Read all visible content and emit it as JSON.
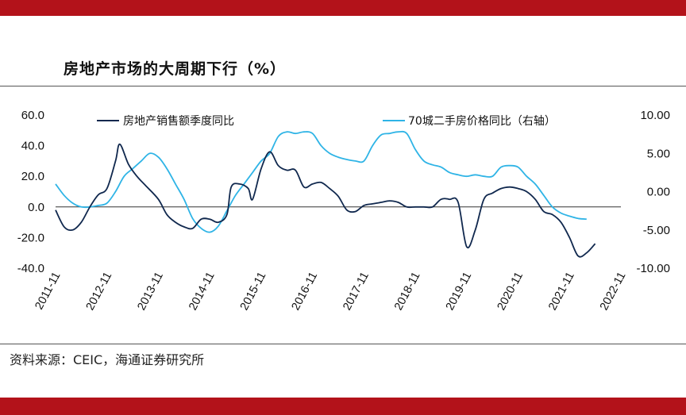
{
  "page": {
    "title": "房地产市场的大周期下行（%）",
    "source": "资料来源：CEIC，海通证券研究所"
  },
  "colors": {
    "band": "#b3121a",
    "series1": "#10284e",
    "series2": "#2fb4e6",
    "zero_line": "#333333"
  },
  "chart_data": {
    "type": "line",
    "title": "房地产市场的大周期下行（%）",
    "x_ticks": [
      "2011-11",
      "2012-11",
      "2013-11",
      "2014-11",
      "2015-11",
      "2016-11",
      "2017-11",
      "2018-11",
      "2019-11",
      "2020-11",
      "2021-11",
      "2022-11"
    ],
    "y_left": {
      "lim": [
        -40,
        60
      ],
      "ticks": [
        "60.0",
        "40.0",
        "20.0",
        "0.0",
        "-20.0",
        "-40.0"
      ]
    },
    "y_right": {
      "lim": [
        -10,
        10
      ],
      "ticks": [
        "10.00",
        "5.00",
        "0.00",
        "-5.00",
        "-10.00"
      ]
    },
    "series": [
      {
        "name": "房地产销售额季度同比",
        "axis": "left",
        "points": [
          [
            "2011-11",
            -2
          ],
          [
            "2012-01",
            -13
          ],
          [
            "2012-03",
            -15
          ],
          [
            "2012-05",
            -10
          ],
          [
            "2012-07",
            0
          ],
          [
            "2012-09",
            8
          ],
          [
            "2012-11",
            12
          ],
          [
            "2013-01",
            30
          ],
          [
            "2013-02",
            41
          ],
          [
            "2013-04",
            28
          ],
          [
            "2013-06",
            20
          ],
          [
            "2013-08",
            14
          ],
          [
            "2013-11",
            5
          ],
          [
            "2014-01",
            -5
          ],
          [
            "2014-03",
            -10
          ],
          [
            "2014-05",
            -13
          ],
          [
            "2014-07",
            -14
          ],
          [
            "2014-09",
            -8
          ],
          [
            "2014-11",
            -8
          ],
          [
            "2015-01",
            -10
          ],
          [
            "2015-03",
            -5
          ],
          [
            "2015-04",
            13
          ],
          [
            "2015-06",
            15
          ],
          [
            "2015-08",
            12
          ],
          [
            "2015-09",
            5
          ],
          [
            "2015-11",
            25
          ],
          [
            "2016-01",
            36
          ],
          [
            "2016-03",
            27
          ],
          [
            "2016-05",
            24
          ],
          [
            "2016-07",
            24
          ],
          [
            "2016-09",
            13
          ],
          [
            "2016-11",
            15
          ],
          [
            "2017-01",
            16
          ],
          [
            "2017-03",
            12
          ],
          [
            "2017-05",
            7
          ],
          [
            "2017-07",
            -2
          ],
          [
            "2017-09",
            -3
          ],
          [
            "2017-11",
            1
          ],
          [
            "2018-01",
            2
          ],
          [
            "2018-03",
            3
          ],
          [
            "2018-05",
            4
          ],
          [
            "2018-07",
            3
          ],
          [
            "2018-09",
            0
          ],
          [
            "2018-11",
            0
          ],
          [
            "2019-01",
            0
          ],
          [
            "2019-03",
            0
          ],
          [
            "2019-05",
            5
          ],
          [
            "2019-07",
            5
          ],
          [
            "2019-09",
            3
          ],
          [
            "2019-11",
            -26
          ],
          [
            "2020-01",
            -15
          ],
          [
            "2020-03",
            5
          ],
          [
            "2020-05",
            9
          ],
          [
            "2020-07",
            12
          ],
          [
            "2020-09",
            13
          ],
          [
            "2020-11",
            12
          ],
          [
            "2021-01",
            10
          ],
          [
            "2021-03",
            5
          ],
          [
            "2021-05",
            -3
          ],
          [
            "2021-07",
            -5
          ],
          [
            "2021-09",
            -10
          ],
          [
            "2021-11",
            -20
          ],
          [
            "2022-01",
            -32
          ],
          [
            "2022-03",
            -30
          ],
          [
            "2022-05",
            -24
          ]
        ]
      },
      {
        "name": "70城二手房价格同比（右轴）",
        "axis": "right",
        "points": [
          [
            "2011-11",
            1.0
          ],
          [
            "2012-01",
            -0.5
          ],
          [
            "2012-03",
            -1.5
          ],
          [
            "2012-05",
            -2.0
          ],
          [
            "2012-07",
            -2.0
          ],
          [
            "2012-09",
            -1.8
          ],
          [
            "2012-11",
            -1.5
          ],
          [
            "2013-01",
            0.0
          ],
          [
            "2013-03",
            2.0
          ],
          [
            "2013-05",
            3.0
          ],
          [
            "2013-07",
            4.0
          ],
          [
            "2013-09",
            5.0
          ],
          [
            "2013-11",
            4.5
          ],
          [
            "2014-01",
            3.0
          ],
          [
            "2014-03",
            1.0
          ],
          [
            "2014-05",
            -1.0
          ],
          [
            "2014-07",
            -3.5
          ],
          [
            "2014-09",
            -4.8
          ],
          [
            "2014-11",
            -5.3
          ],
          [
            "2015-01",
            -4.5
          ],
          [
            "2015-03",
            -2.5
          ],
          [
            "2015-05",
            -0.5
          ],
          [
            "2015-07",
            1.0
          ],
          [
            "2015-09",
            2.5
          ],
          [
            "2015-11",
            4.0
          ],
          [
            "2016-01",
            5.0
          ],
          [
            "2016-03",
            7.2
          ],
          [
            "2016-05",
            7.8
          ],
          [
            "2016-07",
            7.6
          ],
          [
            "2016-09",
            7.8
          ],
          [
            "2016-11",
            7.6
          ],
          [
            "2017-01",
            6.0
          ],
          [
            "2017-03",
            5.0
          ],
          [
            "2017-05",
            4.5
          ],
          [
            "2017-07",
            4.2
          ],
          [
            "2017-09",
            4.0
          ],
          [
            "2017-11",
            4.0
          ],
          [
            "2018-01",
            6.0
          ],
          [
            "2018-03",
            7.4
          ],
          [
            "2018-05",
            7.6
          ],
          [
            "2018-07",
            7.8
          ],
          [
            "2018-09",
            7.6
          ],
          [
            "2018-11",
            5.5
          ],
          [
            "2019-01",
            4.0
          ],
          [
            "2019-03",
            3.5
          ],
          [
            "2019-05",
            3.2
          ],
          [
            "2019-07",
            2.5
          ],
          [
            "2019-09",
            2.2
          ],
          [
            "2019-11",
            2.0
          ],
          [
            "2020-01",
            2.2
          ],
          [
            "2020-03",
            2.0
          ],
          [
            "2020-05",
            2.0
          ],
          [
            "2020-07",
            3.2
          ],
          [
            "2020-09",
            3.4
          ],
          [
            "2020-11",
            3.2
          ],
          [
            "2021-01",
            2.0
          ],
          [
            "2021-03",
            1.0
          ],
          [
            "2021-05",
            -0.5
          ],
          [
            "2021-07",
            -2.0
          ],
          [
            "2021-09",
            -2.8
          ],
          [
            "2021-11",
            -3.2
          ],
          [
            "2022-01",
            -3.5
          ],
          [
            "2022-03",
            -3.6
          ]
        ]
      }
    ],
    "legend": "top-inside",
    "grid": false
  }
}
